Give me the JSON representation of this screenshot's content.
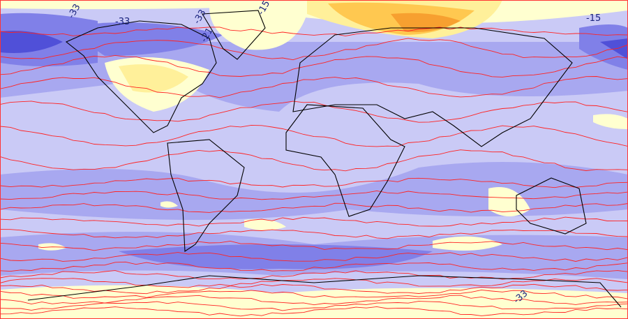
{
  "map": {
    "projection": "equirectangular world",
    "contour_color": "#ff2222",
    "coastline_color": "#000000",
    "fill_palette": {
      "darkest_blue": "#5050d8",
      "dark_blue": "#8080e8",
      "mid_blue": "#a8a8f0",
      "light_blue": "#cacaf6",
      "pale_yellow": "#ffffd0",
      "yellow": "#fff09a",
      "orange": "#ffc850",
      "deep_orange": "#f7a030"
    },
    "contour_labels": [
      {
        "text": "-33"
      },
      {
        "text": "-33"
      },
      {
        "text": "-33"
      },
      {
        "text": "-15"
      },
      {
        "text": "-21"
      },
      {
        "text": "-15"
      },
      {
        "text": "-33"
      }
    ]
  }
}
